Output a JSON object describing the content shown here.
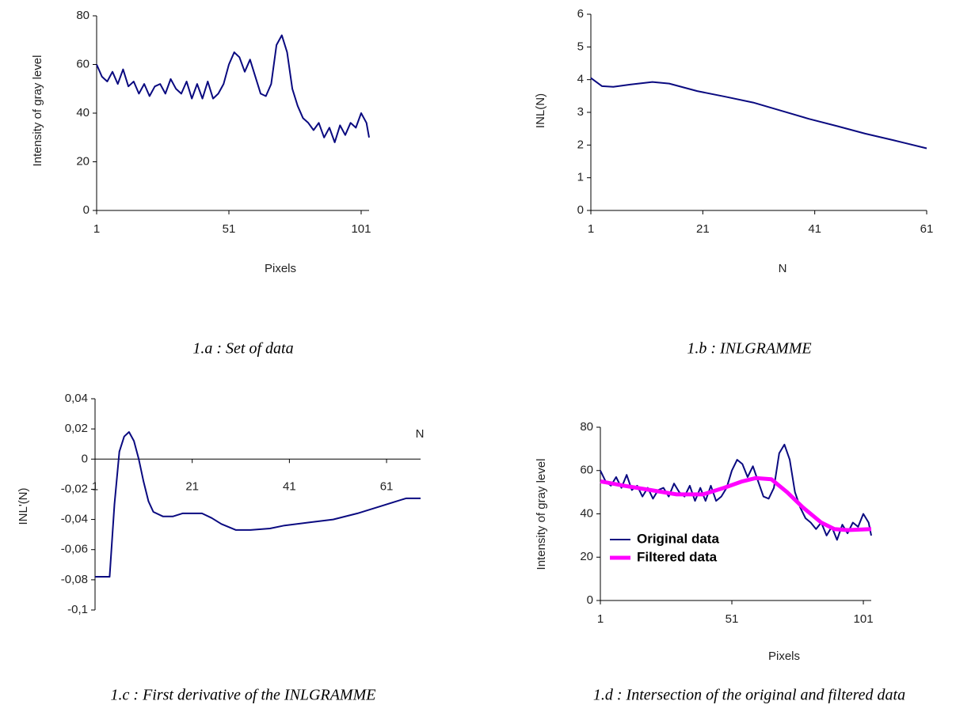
{
  "chart_data": [
    {
      "type": "line",
      "caption": "1.a : Set of data",
      "ylabel": "Intensity of gray level",
      "xlabel": "Pixels",
      "x": [
        1,
        3,
        5,
        7,
        9,
        11,
        13,
        15,
        17,
        19,
        21,
        23,
        25,
        27,
        29,
        31,
        33,
        35,
        37,
        39,
        41,
        43,
        45,
        47,
        49,
        51,
        53,
        55,
        57,
        59,
        61,
        63,
        65,
        67,
        69,
        71,
        73,
        75,
        77,
        79,
        81,
        83,
        85,
        87,
        89,
        91,
        93,
        95,
        97,
        99,
        101,
        103,
        104
      ],
      "values": [
        60,
        55,
        53,
        57,
        52,
        58,
        51,
        53,
        48,
        52,
        47,
        51,
        52,
        48,
        54,
        50,
        48,
        53,
        46,
        52,
        46,
        53,
        46,
        48,
        52,
        60,
        65,
        63,
        57,
        62,
        55,
        48,
        47,
        52,
        68,
        72,
        65,
        50,
        43,
        38,
        36,
        33,
        36,
        30,
        34,
        28,
        35,
        31,
        36,
        34,
        40,
        36,
        30
      ],
      "color": "#0a0a80",
      "xlim": [
        1,
        104
      ],
      "ylim": [
        0,
        80
      ],
      "xticks": [
        1,
        51,
        101
      ],
      "yticks": [
        0,
        20,
        40,
        60,
        80
      ]
    },
    {
      "type": "line",
      "caption": "1.b : INLGRAMME",
      "ylabel": "INL(N)",
      "xlabel": "N",
      "x": [
        1,
        3,
        5,
        8,
        12,
        15,
        20,
        25,
        30,
        35,
        40,
        45,
        50,
        55,
        61
      ],
      "values": [
        4.05,
        3.8,
        3.78,
        3.85,
        3.93,
        3.88,
        3.65,
        3.48,
        3.3,
        3.05,
        2.8,
        2.58,
        2.35,
        2.15,
        1.9
      ],
      "color": "#0a0a80",
      "xlim": [
        1,
        61
      ],
      "ylim": [
        0,
        6
      ],
      "xticks": [
        1,
        21,
        41,
        61
      ],
      "yticks": [
        0,
        1,
        2,
        3,
        4,
        5,
        6
      ]
    },
    {
      "type": "line",
      "caption": "1.c : First derivative of the INLGRAMME",
      "ylabel": "INL'(N)",
      "xlabel": "N",
      "x": [
        1,
        4,
        5,
        6,
        7,
        8,
        9,
        10,
        11,
        12,
        13,
        15,
        17,
        19,
        23,
        25,
        27,
        30,
        33,
        37,
        40,
        45,
        50,
        55,
        60,
        63,
        65,
        68
      ],
      "values": [
        -0.078,
        -0.078,
        -0.03,
        0.005,
        0.015,
        0.018,
        0.012,
        0.0,
        -0.015,
        -0.028,
        -0.035,
        -0.038,
        -0.038,
        -0.036,
        -0.036,
        -0.039,
        -0.043,
        -0.047,
        -0.047,
        -0.046,
        -0.044,
        -0.042,
        -0.04,
        -0.036,
        -0.031,
        -0.028,
        -0.026,
        -0.026
      ],
      "color": "#0a0a80",
      "xlim": [
        1,
        68
      ],
      "ylim": [
        -0.1,
        0.04
      ],
      "xticks": [
        1,
        21,
        41,
        61
      ],
      "yticks": [
        {
          "value": -0.1,
          "label": "-0,1"
        },
        {
          "value": -0.08,
          "label": "-0,08"
        },
        {
          "value": -0.06,
          "label": "-0,06"
        },
        {
          "value": -0.04,
          "label": "-0,04"
        },
        {
          "value": -0.02,
          "label": "-0,02"
        },
        0,
        {
          "value": 0.02,
          "label": "0,02"
        },
        {
          "value": 0.04,
          "label": "0,04"
        }
      ]
    },
    {
      "type": "line",
      "caption": "1.d : Intersection of the original and filtered data",
      "ylabel": "Intensity of gray level",
      "xlabel": "Pixels",
      "xlim": [
        1,
        104
      ],
      "ylim": [
        0,
        80
      ],
      "xticks": [
        1,
        51,
        101
      ],
      "yticks": [
        0,
        20,
        40,
        60,
        80
      ],
      "legend": "lower left",
      "series": [
        {
          "name": "Original data",
          "color": "#0a0a80",
          "x": [
            1,
            3,
            5,
            7,
            9,
            11,
            13,
            15,
            17,
            19,
            21,
            23,
            25,
            27,
            29,
            31,
            33,
            35,
            37,
            39,
            41,
            43,
            45,
            47,
            49,
            51,
            53,
            55,
            57,
            59,
            61,
            63,
            65,
            67,
            69,
            71,
            73,
            75,
            77,
            79,
            81,
            83,
            85,
            87,
            89,
            91,
            93,
            95,
            97,
            99,
            101,
            103,
            104
          ],
          "values": [
            60,
            55,
            53,
            57,
            52,
            58,
            51,
            53,
            48,
            52,
            47,
            51,
            52,
            48,
            54,
            50,
            48,
            53,
            46,
            52,
            46,
            53,
            46,
            48,
            52,
            60,
            65,
            63,
            57,
            62,
            55,
            48,
            47,
            52,
            68,
            72,
            65,
            50,
            43,
            38,
            36,
            33,
            36,
            30,
            34,
            28,
            35,
            31,
            36,
            34,
            40,
            36,
            30
          ]
        },
        {
          "name": "Filtered data",
          "color": "#ff00ff",
          "x": [
            1,
            10,
            20,
            30,
            40,
            48,
            55,
            60,
            66,
            72,
            78,
            85,
            90,
            95,
            104
          ],
          "values": [
            55,
            53,
            51,
            49,
            49,
            52,
            55,
            56.5,
            56,
            50,
            43,
            36,
            33,
            32.5,
            33
          ]
        }
      ]
    }
  ]
}
